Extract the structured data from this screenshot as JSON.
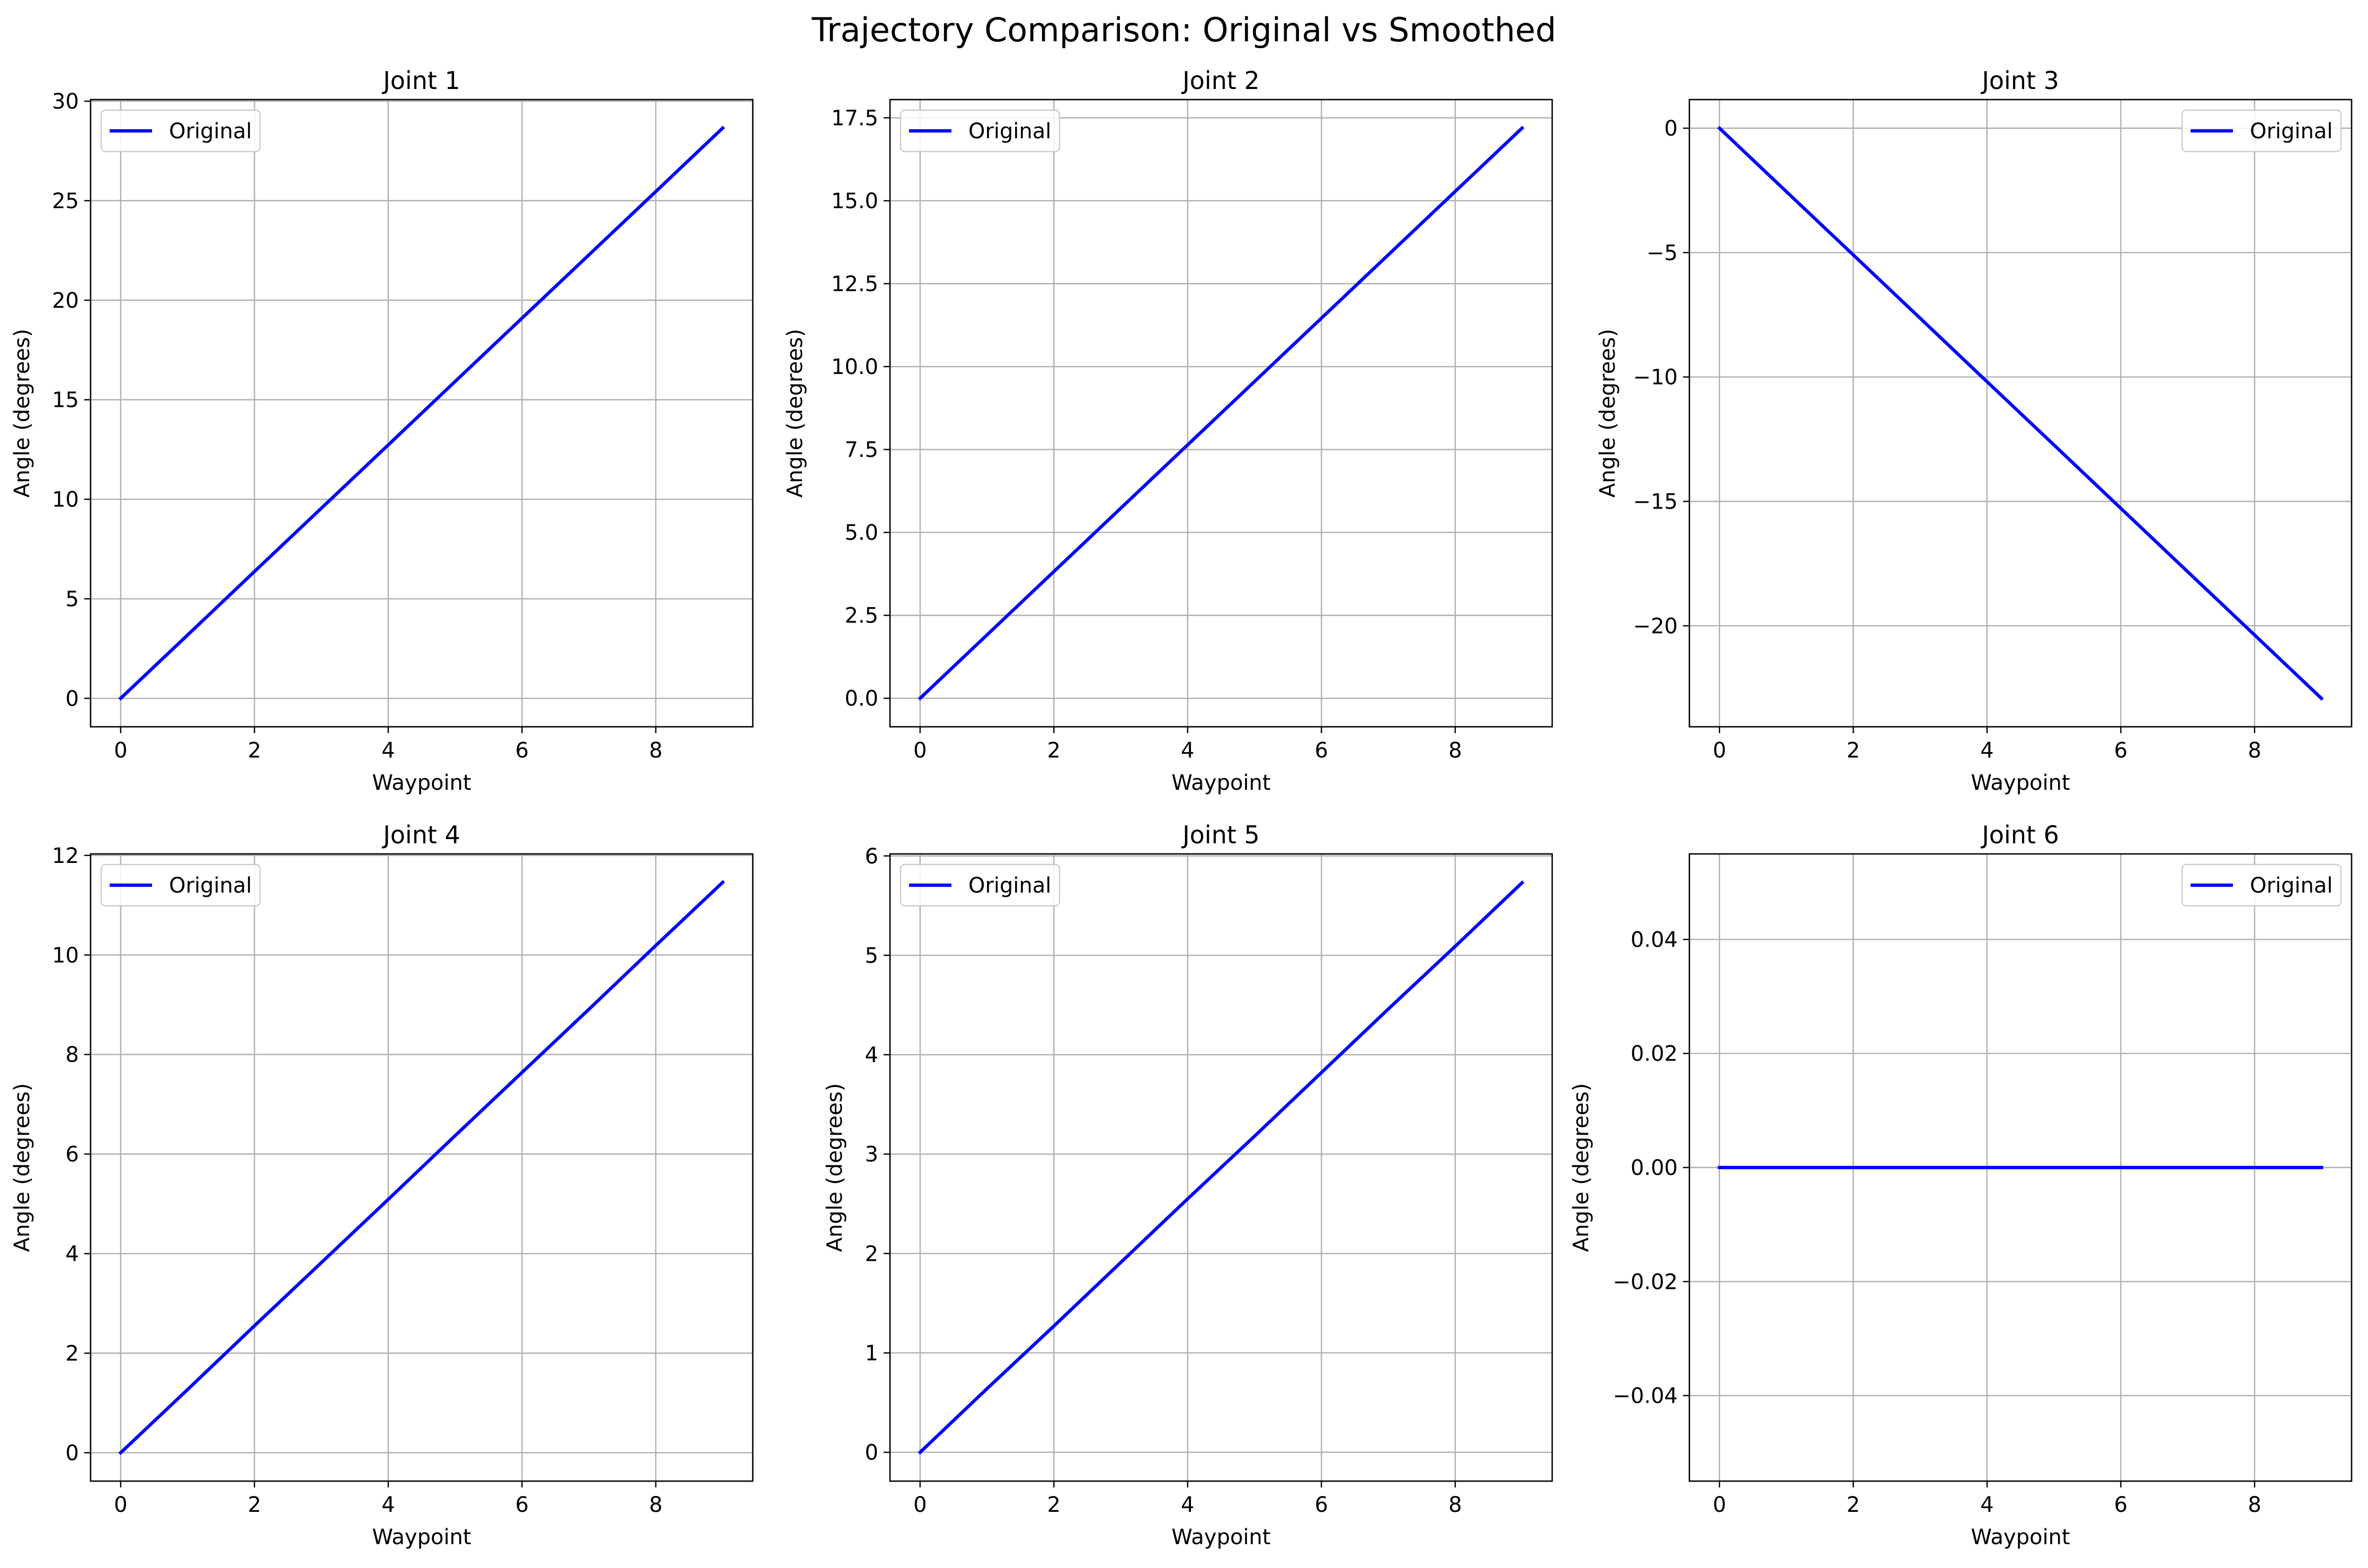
{
  "figure": {
    "title": "Trajectory Comparison: Original vs Smoothed"
  },
  "colors": {
    "line": "#0000ff",
    "grid": "#b0b0b0",
    "axes": "#000000",
    "legend_border": "#cccccc",
    "background": "#ffffff"
  },
  "chart_data": [
    {
      "type": "line",
      "title": "Joint 1",
      "xlabel": "Waypoint",
      "ylabel": "Angle (degrees)",
      "xlim": [
        -0.45,
        9.45
      ],
      "ylim": [
        -1.43,
        30.08
      ],
      "xticks": [
        0,
        2,
        4,
        6,
        8
      ],
      "yticks": [
        0,
        5,
        10,
        15,
        20,
        25,
        30
      ],
      "ytick_labels": [
        "0",
        "5",
        "10",
        "15",
        "20",
        "25",
        "30"
      ],
      "grid": true,
      "legend": "upper left",
      "series": [
        {
          "name": "Original",
          "color": "#0000ff",
          "x": [
            0,
            1,
            2,
            3,
            4,
            5,
            6,
            7,
            8,
            9
          ],
          "y": [
            0,
            3.18,
            6.37,
            9.55,
            12.73,
            15.92,
            19.1,
            22.28,
            25.46,
            28.65
          ]
        }
      ]
    },
    {
      "type": "line",
      "title": "Joint 2",
      "xlabel": "Waypoint",
      "ylabel": "Angle (degrees)",
      "xlim": [
        -0.45,
        9.45
      ],
      "ylim": [
        -0.86,
        18.05
      ],
      "xticks": [
        0,
        2,
        4,
        6,
        8
      ],
      "yticks": [
        0,
        2.5,
        5,
        7.5,
        10,
        12.5,
        15,
        17.5
      ],
      "ytick_labels": [
        "0.0",
        "2.5",
        "5.0",
        "7.5",
        "10.0",
        "12.5",
        "15.0",
        "17.5"
      ],
      "grid": true,
      "legend": "upper left",
      "series": [
        {
          "name": "Original",
          "color": "#0000ff",
          "x": [
            0,
            1,
            2,
            3,
            4,
            5,
            6,
            7,
            8,
            9
          ],
          "y": [
            0,
            1.91,
            3.82,
            5.73,
            7.64,
            9.55,
            11.46,
            13.37,
            15.28,
            17.19
          ]
        }
      ]
    },
    {
      "type": "line",
      "title": "Joint 3",
      "xlabel": "Waypoint",
      "ylabel": "Angle (degrees)",
      "xlim": [
        -0.45,
        9.45
      ],
      "ylim": [
        -24.06,
        1.15
      ],
      "xticks": [
        0,
        2,
        4,
        6,
        8
      ],
      "yticks": [
        0,
        -5,
        -10,
        -15,
        -20
      ],
      "ytick_labels": [
        "0",
        "−5",
        "−10",
        "−15",
        "−20"
      ],
      "grid": true,
      "legend": "upper right",
      "series": [
        {
          "name": "Original",
          "color": "#0000ff",
          "x": [
            0,
            1,
            2,
            3,
            4,
            5,
            6,
            7,
            8,
            9
          ],
          "y": [
            0,
            -2.55,
            -5.09,
            -7.64,
            -10.19,
            -12.73,
            -15.28,
            -17.83,
            -20.37,
            -22.92
          ]
        }
      ]
    },
    {
      "type": "line",
      "title": "Joint 4",
      "xlabel": "Waypoint",
      "ylabel": "Angle (degrees)",
      "xlim": [
        -0.45,
        9.45
      ],
      "ylim": [
        -0.57,
        12.03
      ],
      "xticks": [
        0,
        2,
        4,
        6,
        8
      ],
      "yticks": [
        0,
        2,
        4,
        6,
        8,
        10,
        12
      ],
      "ytick_labels": [
        "0",
        "2",
        "4",
        "6",
        "8",
        "10",
        "12"
      ],
      "grid": true,
      "legend": "upper left",
      "series": [
        {
          "name": "Original",
          "color": "#0000ff",
          "x": [
            0,
            1,
            2,
            3,
            4,
            5,
            6,
            7,
            8,
            9
          ],
          "y": [
            0,
            1.27,
            2.55,
            3.82,
            5.09,
            6.37,
            7.64,
            8.91,
            10.19,
            11.46
          ]
        }
      ]
    },
    {
      "type": "line",
      "title": "Joint 5",
      "xlabel": "Waypoint",
      "ylabel": "Angle (degrees)",
      "xlim": [
        -0.45,
        9.45
      ],
      "ylim": [
        -0.29,
        6.02
      ],
      "xticks": [
        0,
        2,
        4,
        6,
        8
      ],
      "yticks": [
        0,
        1,
        2,
        3,
        4,
        5,
        6
      ],
      "ytick_labels": [
        "0",
        "1",
        "2",
        "3",
        "4",
        "5",
        "6"
      ],
      "grid": true,
      "legend": "upper left",
      "series": [
        {
          "name": "Original",
          "color": "#0000ff",
          "x": [
            0,
            1,
            2,
            3,
            4,
            5,
            6,
            7,
            8,
            9
          ],
          "y": [
            0,
            0.64,
            1.27,
            1.91,
            2.55,
            3.18,
            3.82,
            4.46,
            5.09,
            5.73
          ]
        }
      ]
    },
    {
      "type": "line",
      "title": "Joint 6",
      "xlabel": "Waypoint",
      "ylabel": "Angle (degrees)",
      "xlim": [
        -0.45,
        9.45
      ],
      "ylim": [
        -0.055,
        0.055
      ],
      "xticks": [
        0,
        2,
        4,
        6,
        8
      ],
      "yticks": [
        -0.04,
        -0.02,
        0,
        0.02,
        0.04
      ],
      "ytick_labels": [
        "−0.04",
        "−0.02",
        "0.00",
        "0.02",
        "0.04"
      ],
      "grid": true,
      "legend": "upper right",
      "series": [
        {
          "name": "Original",
          "color": "#0000ff",
          "x": [
            0,
            1,
            2,
            3,
            4,
            5,
            6,
            7,
            8,
            9
          ],
          "y": [
            0,
            0,
            0,
            0,
            0,
            0,
            0,
            0,
            0,
            0
          ]
        }
      ]
    }
  ]
}
